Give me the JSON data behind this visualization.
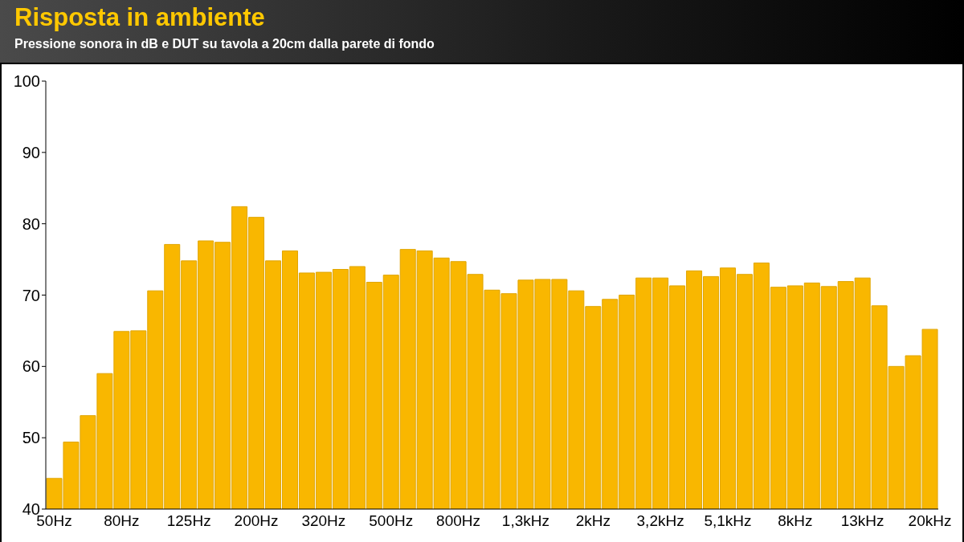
{
  "chart_data": {
    "type": "bar",
    "title": "Risposta in ambiente",
    "subtitle": "Pressione sonora in dB e DUT su tavola a 20cm dalla parete di fondo",
    "categories": [
      "50Hz",
      null,
      null,
      null,
      "80Hz",
      null,
      null,
      null,
      "125Hz",
      null,
      null,
      null,
      "200Hz",
      null,
      null,
      null,
      "320Hz",
      null,
      null,
      null,
      "500Hz",
      null,
      null,
      null,
      "800Hz",
      null,
      null,
      null,
      "1,3kHz",
      null,
      null,
      null,
      "2kHz",
      null,
      null,
      null,
      "3,2kHz",
      null,
      null,
      null,
      "5,1kHz",
      null,
      null,
      null,
      "8kHz",
      null,
      null,
      null,
      "13kHz",
      null,
      null,
      null,
      "20kHz"
    ],
    "values": [
      44.3,
      49.4,
      53.1,
      59.0,
      64.9,
      65.0,
      70.6,
      77.1,
      74.8,
      77.6,
      77.4,
      82.4,
      80.9,
      74.8,
      76.2,
      73.1,
      73.2,
      73.6,
      74.0,
      71.8,
      72.8,
      76.4,
      76.2,
      75.2,
      74.7,
      72.9,
      70.7,
      70.2,
      72.1,
      72.2,
      72.2,
      70.6,
      68.4,
      69.4,
      70.0,
      72.4,
      72.4,
      71.3,
      73.4,
      72.6,
      73.8,
      72.9,
      74.5,
      71.1,
      71.3,
      71.7,
      71.2,
      71.9,
      72.4,
      68.5,
      60.0,
      61.5,
      65.2
    ],
    "color": "#f9b700",
    "ylim": [
      40,
      100
    ],
    "yticks": [
      40,
      50,
      60,
      70,
      80,
      90,
      100
    ]
  }
}
